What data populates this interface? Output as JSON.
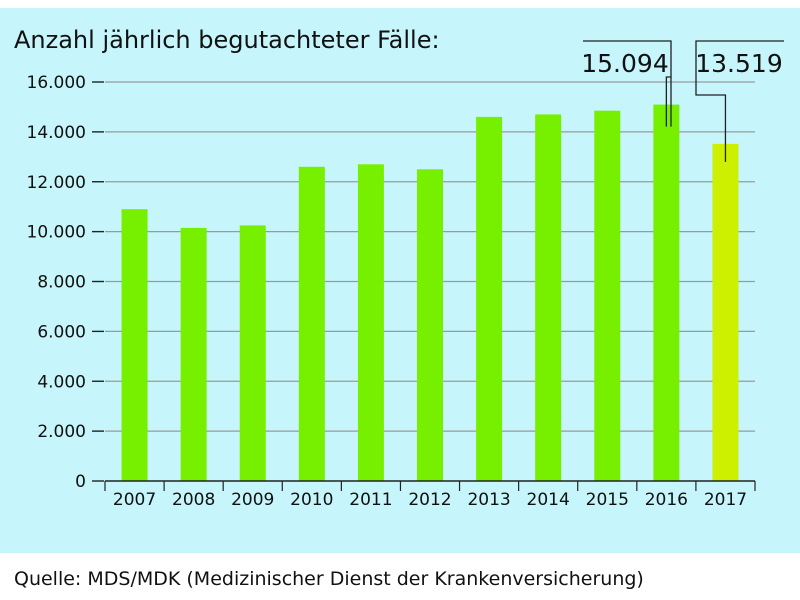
{
  "colors": {
    "background": "#c6f5fb",
    "bar": "#77f000",
    "highlight_bar": "#ccf000",
    "grid": "#9a9a9a",
    "text": "#111111"
  },
  "chart_data": {
    "type": "bar",
    "title": "Anzahl jährlich begutachteter Fälle:",
    "categories": [
      "2007",
      "2008",
      "2009",
      "2010",
      "2011",
      "2012",
      "2013",
      "2014",
      "2015",
      "2016",
      "2017"
    ],
    "values": [
      10900,
      10150,
      10250,
      12600,
      12700,
      12500,
      14600,
      14700,
      14850,
      15094,
      13519
    ],
    "highlight_index": 10,
    "ylim": [
      0,
      16000
    ],
    "yticks": [
      "0",
      "2.000",
      "4.000",
      "6.000",
      "8.000",
      "10.000",
      "12.000",
      "14.000",
      "16.000"
    ],
    "grid": true,
    "annotations": [
      {
        "category": "2016",
        "label": "15.094"
      },
      {
        "category": "2017",
        "label": "13.519"
      }
    ]
  },
  "source": "Quelle: MDS/MDK (Medizinischer Dienst der Krankenversicherung)"
}
